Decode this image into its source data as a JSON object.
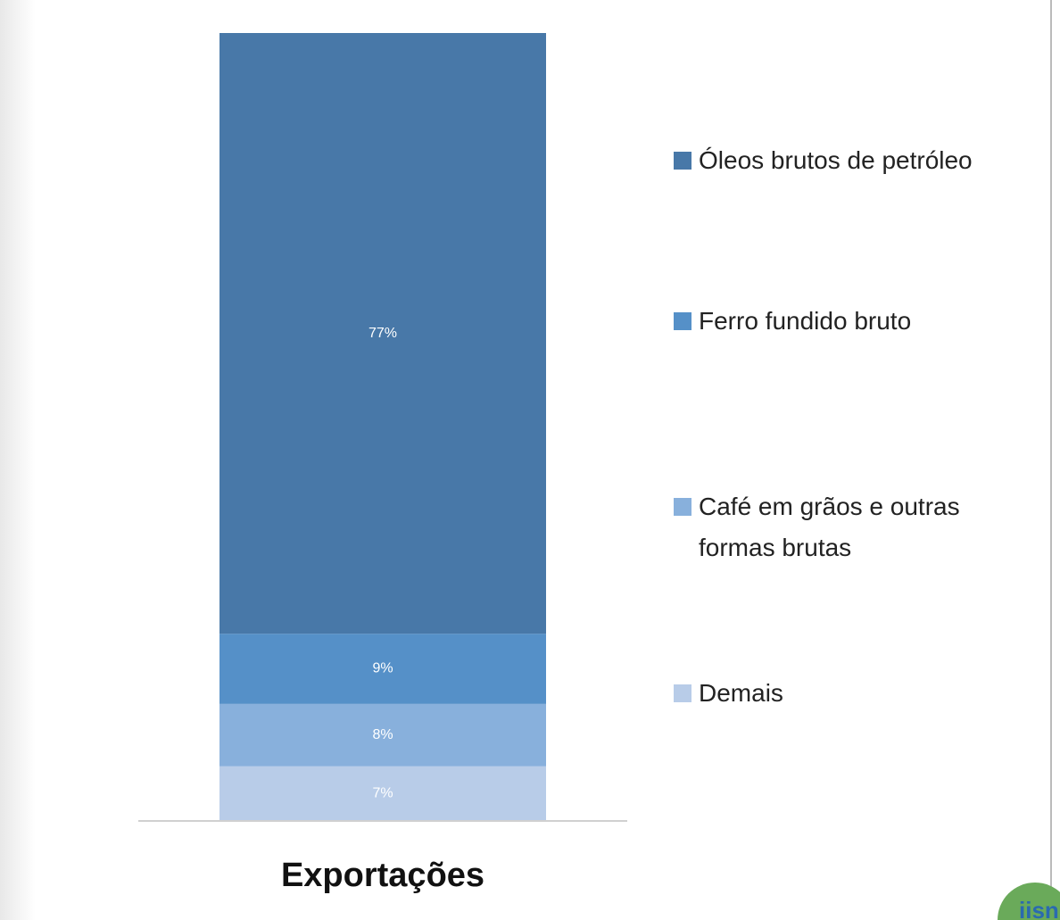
{
  "chart_data": {
    "type": "stacked_bar",
    "categories": [
      "Exportações"
    ],
    "series": [
      {
        "name": "Demais",
        "color": "#b8cce8",
        "values": [
          7
        ],
        "value_labels": [
          "7%"
        ]
      },
      {
        "name": "Café em grãos e outras formas brutas",
        "color": "#88b0dc",
        "values": [
          8
        ],
        "value_labels": [
          "8%"
        ]
      },
      {
        "name": "Ferro fundido bruto",
        "color": "#5590c8",
        "values": [
          9
        ],
        "value_labels": [
          "9%"
        ]
      },
      {
        "name": "Óleos brutos de petróleo",
        "color": "#4878a8",
        "values": [
          77
        ],
        "value_labels": [
          "77%"
        ]
      }
    ],
    "ylim": [
      0,
      101
    ],
    "legend": "right"
  }
}
